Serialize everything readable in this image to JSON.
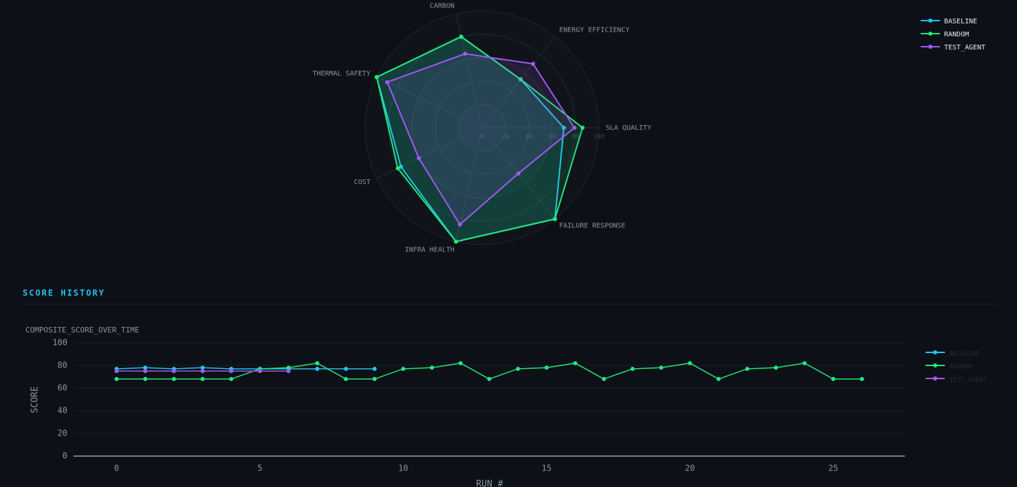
{
  "section_title": "SCORE HISTORY",
  "chart_data": [
    {
      "type": "radar",
      "categories": [
        "SLA QUALITY",
        "ENERGY EFFICIENCY",
        "CARBON",
        "THERMAL SAFETY",
        "COST",
        "INFRA HEALTH",
        "FAILURE RESPONSE"
      ],
      "rlim": [
        0,
        100
      ],
      "rticks": [
        0,
        20,
        40,
        60,
        80,
        100
      ],
      "legend": "top-right",
      "series": [
        {
          "name": "BASELINE",
          "color": "#22c5f0",
          "values": [
            70,
            53,
            80,
            100,
            77,
            100,
            100
          ]
        },
        {
          "name": "RANDOM",
          "color": "#22e87a",
          "values": [
            86,
            53,
            80,
            100,
            80,
            100,
            100
          ]
        },
        {
          "name": "TEST_AGENT",
          "color": "#a259f5",
          "values": [
            79,
            70,
            65,
            90,
            60,
            85,
            50
          ]
        }
      ]
    },
    {
      "type": "line",
      "title": "COMPOSITE_SCORE_OVER_TIME",
      "xlabel": "RUN #",
      "ylabel": "SCORE",
      "x": [
        0,
        1,
        2,
        3,
        4,
        5,
        6,
        7,
        8,
        9,
        10,
        11,
        12,
        13,
        14,
        15,
        16,
        17,
        18,
        19,
        20,
        21,
        22,
        23,
        24,
        25,
        26
      ],
      "xlim": [
        -1.5,
        27.5
      ],
      "xticks": [
        0,
        5,
        10,
        15,
        20,
        25
      ],
      "ylim": [
        0,
        100
      ],
      "yticks": [
        0,
        20,
        40,
        60,
        80,
        100
      ],
      "grid": true,
      "legend": "right",
      "series": [
        {
          "name": "BASELINE",
          "color": "#22c5f0",
          "values": [
            77,
            78,
            77,
            78,
            77,
            77,
            77,
            77,
            77,
            77,
            null,
            null,
            null,
            null,
            null,
            null,
            null,
            null,
            null,
            null,
            null,
            null,
            null,
            null,
            null,
            null,
            null
          ]
        },
        {
          "name": "RANDOM",
          "color": "#22e87a",
          "values": [
            68,
            68,
            68,
            68,
            68,
            77,
            78,
            82,
            68,
            68,
            77,
            78,
            82,
            68,
            77,
            78,
            82,
            68,
            77,
            78,
            82,
            68,
            77,
            78,
            82,
            68,
            68
          ]
        },
        {
          "name": "TEST_AGENT",
          "color": "#a259f5",
          "values": [
            75,
            75,
            75,
            75,
            75,
            75,
            75,
            null,
            null,
            null,
            null,
            null,
            null,
            null,
            null,
            null,
            null,
            null,
            null,
            null,
            null,
            null,
            null,
            null,
            null,
            null,
            null
          ]
        }
      ]
    }
  ]
}
